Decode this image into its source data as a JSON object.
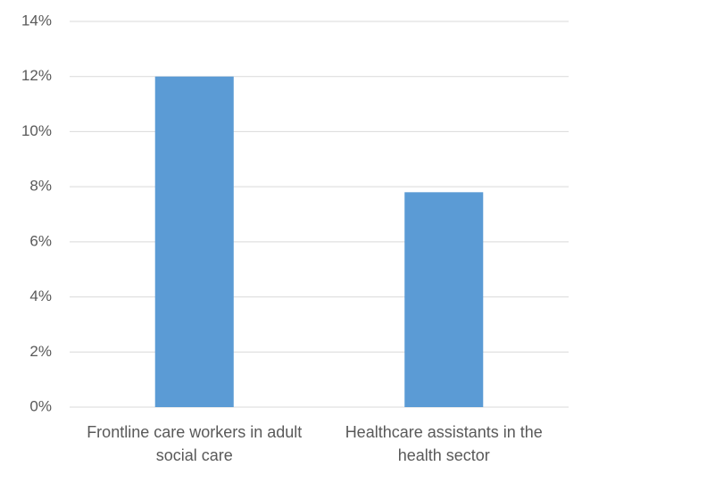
{
  "chart_data": {
    "type": "bar",
    "categories": [
      "Frontline care workers in adult social care",
      "Healthcare assistants in the health sector"
    ],
    "values": [
      12,
      7.8
    ],
    "color": "#5b9bd5",
    "ylim": [
      0,
      14
    ],
    "yticks": [
      {
        "value": 0,
        "label": "0%"
      },
      {
        "value": 2,
        "label": "2%"
      },
      {
        "value": 4,
        "label": "4%"
      },
      {
        "value": 6,
        "label": "6%"
      },
      {
        "value": 8,
        "label": "8%"
      },
      {
        "value": 10,
        "label": "10%"
      },
      {
        "value": 12,
        "label": "12%"
      },
      {
        "value": 14,
        "label": "14%"
      }
    ],
    "grid": true
  }
}
